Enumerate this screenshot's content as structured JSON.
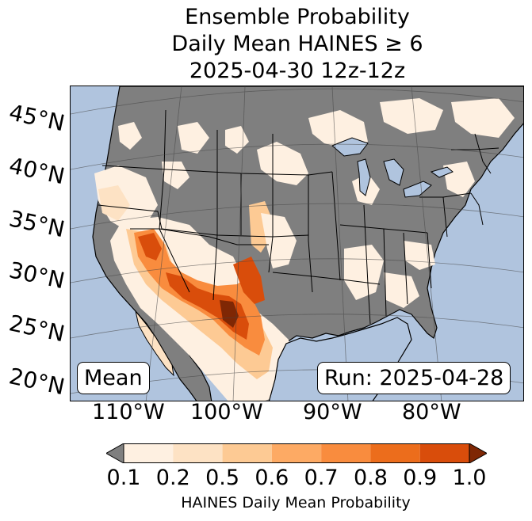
{
  "title": {
    "line1": "Ensemble Probability",
    "line2": "Daily Mean HAINES ≥ 6",
    "line3": "2025-04-30 12z-12z"
  },
  "map": {
    "lat_labels": [
      "45°N",
      "40°N",
      "35°N",
      "30°N",
      "25°N",
      "20°N"
    ],
    "lon_labels": [
      "110°W",
      "100°W",
      "90°W",
      "80°W"
    ],
    "stat_label": "Mean",
    "run_label": "Run: 2025-04-28",
    "colors": {
      "ocean": "#b0c4de",
      "below_threshold": "#7f7f7f",
      "boundaries": "#000000"
    }
  },
  "colorbar": {
    "ticks": [
      "0.1",
      "0.2",
      "0.5",
      "0.6",
      "0.7",
      "0.8",
      "0.9",
      "1.0"
    ],
    "colors": [
      "#fef0e1",
      "#fde2c4",
      "#fdca94",
      "#fdaa64",
      "#f98c3e",
      "#ec6d1c",
      "#d94d0b"
    ],
    "under_color": "#7f7f7f",
    "over_color": "#7f2704",
    "label": "HAINES Daily Mean Probability"
  }
}
